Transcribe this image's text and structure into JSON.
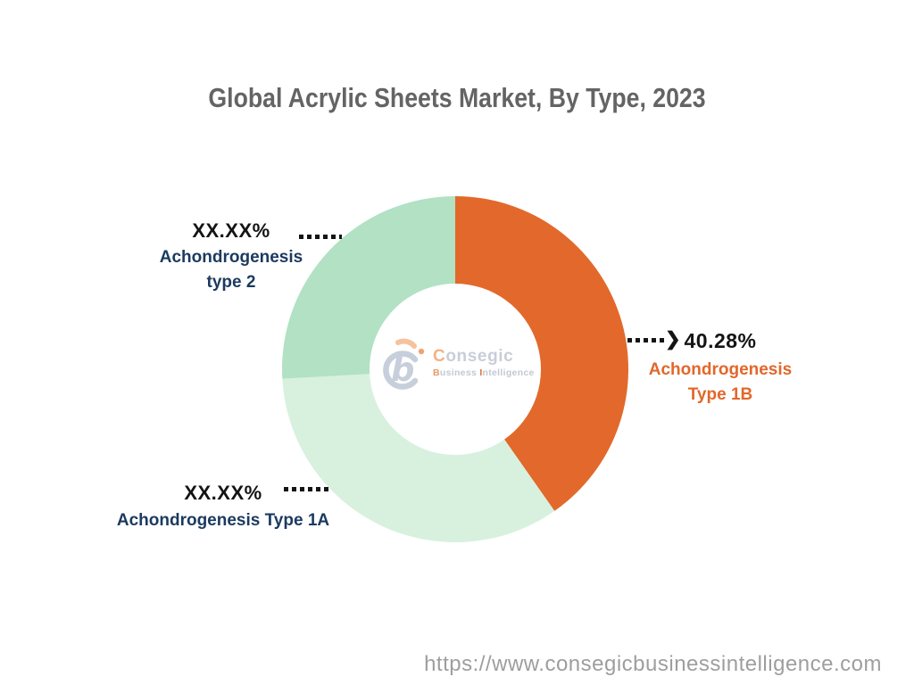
{
  "title": "Global Acrylic Sheets Market, By Type, 2023",
  "chart_data": {
    "type": "pie",
    "subtype": "donut",
    "title": "Global Acrylic Sheets Market, By Type, 2023",
    "start_angle_deg": 0,
    "direction": "clockwise",
    "inner_radius_ratio": 0.495,
    "slices": [
      {
        "label": "Achondrogenesis Type 1B",
        "display_value": "40.28%",
        "value": 40.28,
        "color": "#E2692B"
      },
      {
        "label": "Achondrogenesis Type 1A",
        "display_value": "XX.XX%",
        "value": 33.85,
        "color": "#D8F1DF"
      },
      {
        "label": "Achondrogenesis type 2",
        "display_value": "XX.XX%",
        "value": 25.87,
        "color": "#B2E1C4"
      }
    ],
    "legend_position": "callout-labels",
    "annotations": [
      "XX.XX% Achondrogenesis type 2",
      "XX.XX% Achondrogenesis Type 1A",
      "40.28% Achondrogenesis Type 1B"
    ]
  },
  "labels": {
    "type2": {
      "value": "XX.XX%",
      "line1": "Achondrogenesis",
      "line2": "type 2"
    },
    "type1a": {
      "value": "XX.XX%",
      "line1": "Achondrogenesis Type 1A"
    },
    "type1b": {
      "value": "40.28%",
      "line1": "Achondrogenesis",
      "line2": "Type 1B"
    }
  },
  "icons": {
    "arrow_head": "❯",
    "logo_mark": "consegic-b-mark"
  },
  "watermark": {
    "brand_first": "C",
    "brand_rest": "onsegic",
    "business_first": "B",
    "business_rest": "usiness ",
    "intelligence_first": "I",
    "intelligence_rest": "ntelligence"
  },
  "footer": {
    "url": "https://www.consegicbusinessintelligence.com"
  },
  "colors": {
    "slice_type1b": "#E2692B",
    "slice_type1a": "#D8F1DF",
    "slice_type2": "#B2E1C4",
    "label_navy": "#1b3a5f",
    "label_orange": "#e2672a",
    "title_gray": "#646464",
    "url_gray": "#9e9e9e"
  }
}
